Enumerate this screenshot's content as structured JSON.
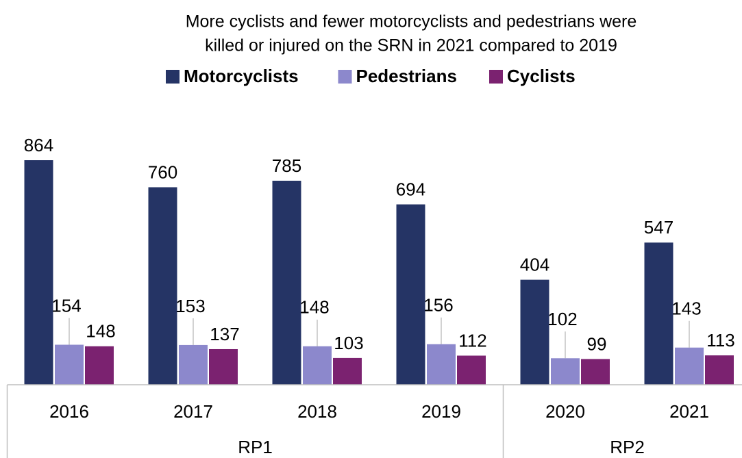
{
  "chart_data": {
    "type": "bar",
    "title": "More cyclists and fewer motorcyclists and pedestrians were killed or injured on the SRN in 2021 compared to 2019",
    "categories": [
      "2016",
      "2017",
      "2018",
      "2019",
      "2020",
      "2021"
    ],
    "groups": [
      {
        "label": "RP1",
        "size": 4
      },
      {
        "label": "RP2",
        "size": 2
      }
    ],
    "series": [
      {
        "name": "Motorcyclists",
        "color": "#253465",
        "values": [
          864,
          760,
          785,
          694,
          404,
          547
        ]
      },
      {
        "name": "Pedestrians",
        "color": "#8c88cc",
        "values": [
          154,
          153,
          148,
          156,
          102,
          143
        ]
      },
      {
        "name": "Cyclists",
        "color": "#7b2270",
        "values": [
          148,
          137,
          103,
          112,
          99,
          113
        ]
      }
    ],
    "legend": "top"
  }
}
